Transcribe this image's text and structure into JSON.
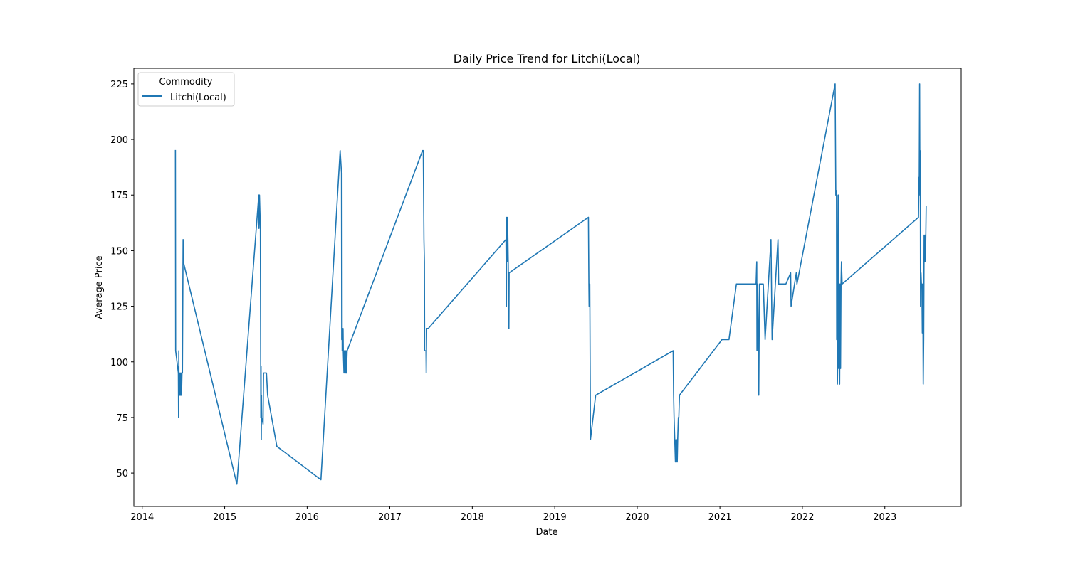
{
  "chart_data": {
    "type": "line",
    "title": "Daily Price Trend for Litchi(Local)",
    "xlabel": "Date",
    "ylabel": "Average Price",
    "xlim": [
      "2013-11-25",
      "2023-12-05"
    ],
    "ylim": [
      35,
      232
    ],
    "x_ticks": [
      "2014",
      "2015",
      "2016",
      "2017",
      "2018",
      "2019",
      "2020",
      "2021",
      "2022",
      "2023"
    ],
    "y_ticks": [
      50,
      75,
      100,
      125,
      150,
      175,
      200,
      225
    ],
    "grid": false,
    "legend": {
      "title": "Commodity",
      "placement": "top-left"
    },
    "series": [
      {
        "name": "Litchi(Local)",
        "color": "#1f77b4",
        "points": [
          [
            "2014-05-28",
            195
          ],
          [
            "2014-05-29",
            105
          ],
          [
            "2014-06-10",
            95
          ],
          [
            "2014-06-11",
            75
          ],
          [
            "2014-06-12",
            105
          ],
          [
            "2014-06-13",
            85
          ],
          [
            "2014-06-14",
            95
          ],
          [
            "2014-06-15",
            85
          ],
          [
            "2014-06-17",
            95
          ],
          [
            "2014-06-18",
            85
          ],
          [
            "2014-06-20",
            95
          ],
          [
            "2014-06-21",
            85
          ],
          [
            "2014-06-23",
            95
          ],
          [
            "2014-06-24",
            85
          ],
          [
            "2014-06-26",
            95
          ],
          [
            "2014-06-28",
            95
          ],
          [
            "2014-07-01",
            155
          ],
          [
            "2014-07-02",
            145
          ],
          [
            "2015-02-24",
            45
          ],
          [
            "2015-06-01",
            175
          ],
          [
            "2015-06-02",
            160
          ],
          [
            "2015-06-04",
            175
          ],
          [
            "2015-06-08",
            160
          ],
          [
            "2015-06-10",
            75
          ],
          [
            "2015-06-11",
            98
          ],
          [
            "2015-06-12",
            65
          ],
          [
            "2015-06-13",
            85
          ],
          [
            "2015-06-14",
            75
          ],
          [
            "2015-06-20",
            72
          ],
          [
            "2015-06-22",
            95
          ],
          [
            "2015-07-05",
            95
          ],
          [
            "2015-07-10",
            85
          ],
          [
            "2015-08-20",
            62
          ],
          [
            "2016-03-02",
            47
          ],
          [
            "2016-05-26",
            195
          ],
          [
            "2016-06-01",
            185
          ],
          [
            "2016-06-02",
            110
          ],
          [
            "2016-06-03",
            185
          ],
          [
            "2016-06-04",
            105
          ],
          [
            "2016-06-08",
            115
          ],
          [
            "2016-06-09",
            105
          ],
          [
            "2016-06-12",
            95
          ],
          [
            "2016-06-14",
            105
          ],
          [
            "2016-06-16",
            95
          ],
          [
            "2016-06-18",
            105
          ],
          [
            "2016-06-20",
            95
          ],
          [
            "2016-06-22",
            105
          ],
          [
            "2016-06-23",
            95
          ],
          [
            "2016-06-26",
            105
          ],
          [
            "2017-05-26",
            195
          ],
          [
            "2017-05-29",
            195
          ],
          [
            "2017-06-01",
            155
          ],
          [
            "2017-06-03",
            145
          ],
          [
            "2017-06-04",
            105
          ],
          [
            "2017-06-10",
            105
          ],
          [
            "2017-06-11",
            95
          ],
          [
            "2017-06-13",
            115
          ],
          [
            "2017-06-20",
            115
          ],
          [
            "2018-05-30",
            155
          ],
          [
            "2018-06-01",
            125
          ],
          [
            "2018-06-02",
            165
          ],
          [
            "2018-06-04",
            145
          ],
          [
            "2018-06-06",
            165
          ],
          [
            "2018-06-09",
            145
          ],
          [
            "2018-06-12",
            115
          ],
          [
            "2018-06-13",
            140
          ],
          [
            "2019-05-30",
            165
          ],
          [
            "2019-06-01",
            135
          ],
          [
            "2019-06-02",
            125
          ],
          [
            "2019-06-05",
            135
          ],
          [
            "2019-06-08",
            65
          ],
          [
            "2019-07-01",
            85
          ],
          [
            "2020-06-08",
            105
          ],
          [
            "2020-06-10",
            85
          ],
          [
            "2020-06-12",
            75
          ],
          [
            "2020-06-15",
            65
          ],
          [
            "2020-06-18",
            55
          ],
          [
            "2020-06-20",
            65
          ],
          [
            "2020-06-22",
            55
          ],
          [
            "2020-06-24",
            65
          ],
          [
            "2020-06-26",
            55
          ],
          [
            "2020-06-28",
            65
          ],
          [
            "2020-07-01",
            75
          ],
          [
            "2020-07-03",
            75
          ],
          [
            "2020-07-06",
            85
          ],
          [
            "2021-01-10",
            110
          ],
          [
            "2021-02-10",
            110
          ],
          [
            "2021-03-15",
            135
          ],
          [
            "2021-06-10",
            135
          ],
          [
            "2021-06-13",
            145
          ],
          [
            "2021-06-14",
            105
          ],
          [
            "2021-06-17",
            135
          ],
          [
            "2021-06-20",
            110
          ],
          [
            "2021-06-22",
            85
          ],
          [
            "2021-06-25",
            135
          ],
          [
            "2021-07-10",
            135
          ],
          [
            "2021-07-12",
            135
          ],
          [
            "2021-07-20",
            110
          ],
          [
            "2021-08-15",
            155
          ],
          [
            "2021-08-20",
            110
          ],
          [
            "2021-09-15",
            155
          ],
          [
            "2021-09-18",
            135
          ],
          [
            "2021-10-20",
            135
          ],
          [
            "2021-11-10",
            140
          ],
          [
            "2021-11-12",
            125
          ],
          [
            "2021-12-05",
            140
          ],
          [
            "2021-12-08",
            135
          ],
          [
            "2022-05-26",
            225
          ],
          [
            "2022-05-29",
            175
          ],
          [
            "2022-06-01",
            177
          ],
          [
            "2022-06-02",
            110
          ],
          [
            "2022-06-03",
            175
          ],
          [
            "2022-06-05",
            90
          ],
          [
            "2022-06-07",
            105
          ],
          [
            "2022-06-09",
            175
          ],
          [
            "2022-06-11",
            97
          ],
          [
            "2022-06-13",
            135
          ],
          [
            "2022-06-15",
            90
          ],
          [
            "2022-06-17",
            135
          ],
          [
            "2022-06-19",
            97
          ],
          [
            "2022-06-21",
            135
          ],
          [
            "2022-06-23",
            145
          ],
          [
            "2022-06-26",
            135
          ],
          [
            "2023-05-30",
            165
          ],
          [
            "2023-06-01",
            183
          ],
          [
            "2023-06-02",
            175
          ],
          [
            "2023-06-04",
            225
          ],
          [
            "2023-06-05",
            185
          ],
          [
            "2023-06-06",
            195
          ],
          [
            "2023-06-07",
            185
          ],
          [
            "2023-06-08",
            125
          ],
          [
            "2023-06-10",
            140
          ],
          [
            "2023-06-12",
            135
          ],
          [
            "2023-06-14",
            135
          ],
          [
            "2023-06-16",
            113
          ],
          [
            "2023-06-18",
            135
          ],
          [
            "2023-06-20",
            90
          ],
          [
            "2023-06-22",
            110
          ],
          [
            "2023-06-24",
            157
          ],
          [
            "2023-06-26",
            145
          ],
          [
            "2023-06-28",
            157
          ],
          [
            "2023-06-30",
            145
          ],
          [
            "2023-07-03",
            170
          ]
        ]
      }
    ]
  }
}
